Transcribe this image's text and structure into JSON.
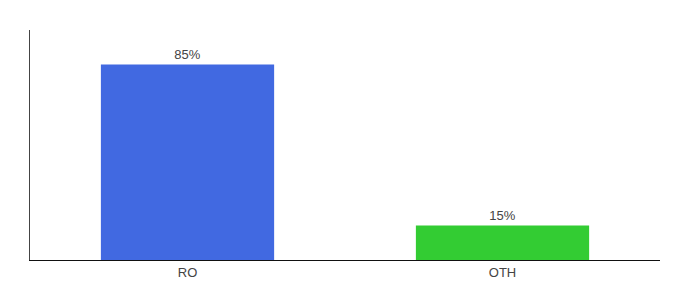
{
  "chart_data": {
    "type": "bar",
    "categories": [
      "RO",
      "OTH"
    ],
    "values": [
      85,
      15
    ],
    "value_labels": [
      "85%",
      "15%"
    ],
    "colors": [
      "#4169e1",
      "#33cc33"
    ],
    "ylim": [
      0,
      100
    ],
    "grid": false,
    "data_labels": true,
    "tick_labels": "x"
  }
}
